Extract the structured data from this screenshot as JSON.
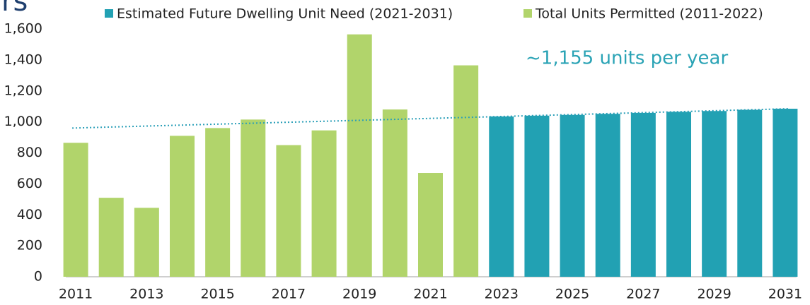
{
  "chart_data": {
    "type": "bar",
    "title": "rs",
    "annotation": "~1,155 units per year",
    "categories": [
      "2011",
      null,
      "2013",
      null,
      "2015",
      null,
      "2017",
      null,
      "2019",
      null,
      "2021",
      null,
      "2023",
      null,
      "2025",
      null,
      "2027",
      null,
      "2029",
      null,
      "2031"
    ],
    "series": [
      {
        "name": "Estimated Future Dwelling Unit Need (2021-2031)",
        "color": "#22a1b3",
        "values": [
          null,
          null,
          null,
          null,
          null,
          null,
          null,
          null,
          null,
          null,
          null,
          null,
          1035,
          1040,
          1045,
          1052,
          1058,
          1065,
          1070,
          1078,
          1085
        ]
      },
      {
        "name": "Total Units Permitted (2011-2022)",
        "color": "#b1d46b",
        "values": [
          865,
          510,
          445,
          910,
          960,
          1015,
          850,
          945,
          1565,
          1080,
          670,
          1365,
          null,
          null,
          null,
          null,
          null,
          null,
          null,
          null,
          null
        ]
      }
    ],
    "trendline": {
      "start": 960,
      "end": 1085,
      "color": "#2a9fb8"
    },
    "ylim": [
      0,
      1600
    ],
    "yticks": [
      0,
      200,
      400,
      600,
      800,
      {
        "value": 1000,
        "label": "1,000"
      },
      {
        "value": 1200,
        "label": "1,200"
      },
      {
        "value": 1400,
        "label": "1,400"
      },
      {
        "value": 1600,
        "label": "1,600"
      }
    ],
    "legend": "top"
  }
}
